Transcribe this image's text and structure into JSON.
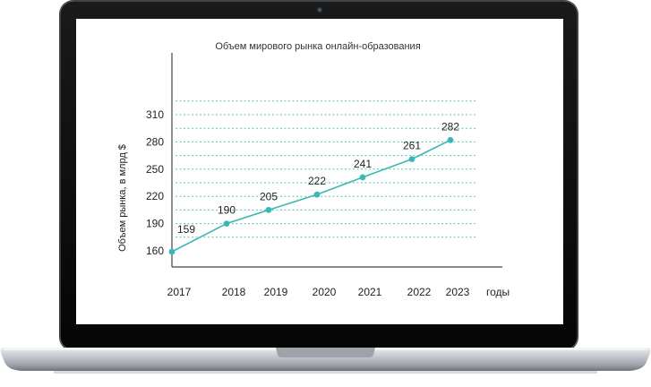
{
  "chart_data": {
    "type": "line",
    "title": "Объем мирового рынка онлайн-образования",
    "ylabel": "Объем рынка, в млрд $",
    "xlabel": "годы",
    "x": [
      "2017",
      "2018",
      "2019",
      "2020",
      "2021",
      "2022",
      "2023"
    ],
    "values": [
      159,
      190,
      205,
      222,
      241,
      261,
      282
    ],
    "data_labels": [
      "159",
      "190",
      "205",
      "222",
      "241",
      "261",
      "282"
    ],
    "yticks": [
      "160",
      "190",
      "220",
      "250",
      "280",
      "310"
    ],
    "ylim": [
      160,
      330
    ],
    "grid": true,
    "line_color": "#3bb8b3",
    "grid_color": "#3bb8b3"
  }
}
